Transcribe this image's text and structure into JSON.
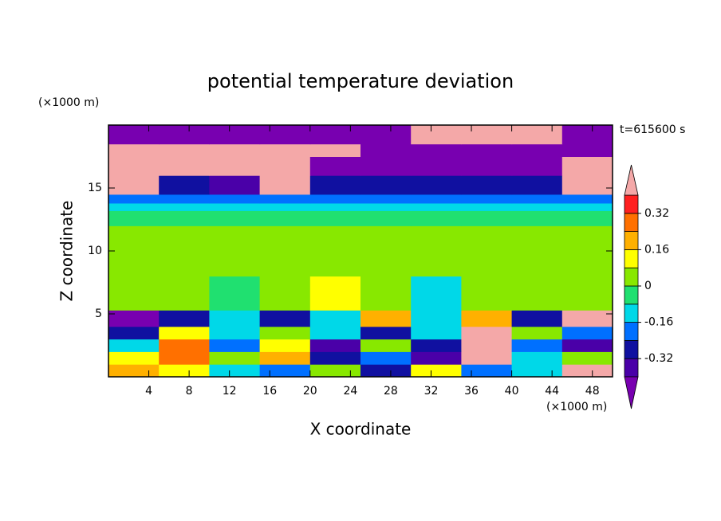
{
  "chart_data": {
    "type": "contour",
    "title": "potential temperature deviation",
    "y_unit": "(×1000 m)",
    "x_unit": "(×1000 m)",
    "time_label": "t=615600 s",
    "xlabel": "X coordinate",
    "ylabel": "Z coordinate",
    "xlim": [
      0,
      50
    ],
    "ylim": [
      0,
      20
    ],
    "xticks": [
      4,
      8,
      12,
      16,
      20,
      24,
      28,
      32,
      36,
      40,
      44,
      48
    ],
    "yticks": [
      5,
      10,
      15
    ],
    "x_edges": [
      0,
      5,
      10,
      15,
      20,
      25,
      30,
      35,
      40,
      45,
      50
    ],
    "z_edges": [
      0,
      1,
      2,
      3,
      4,
      5.3,
      8,
      12,
      13.2,
      13.8,
      14.5,
      16,
      17.5,
      18.5,
      20
    ],
    "values": [
      [
        0.2,
        0.1,
        -0.1,
        -0.2,
        0.0,
        -0.3,
        0.1,
        -0.2,
        -0.1,
        0.45
      ],
      [
        0.1,
        0.3,
        0.0,
        0.2,
        -0.3,
        -0.2,
        -0.35,
        0.45,
        -0.1,
        0.0
      ],
      [
        -0.1,
        0.25,
        -0.2,
        0.1,
        -0.35,
        0.0,
        -0.3,
        0.45,
        -0.2,
        -0.35
      ],
      [
        -0.3,
        0.1,
        -0.15,
        0.0,
        -0.1,
        -0.25,
        -0.15,
        0.45,
        0.0,
        -0.2
      ],
      [
        -0.45,
        -0.3,
        -0.1,
        -0.3,
        -0.1,
        0.2,
        -0.1,
        0.2,
        -0.3,
        0.45
      ],
      [
        0.05,
        0.05,
        -0.05,
        0.05,
        0.1,
        0.05,
        -0.12,
        0.05,
        0.05,
        0.05
      ],
      [
        0.05,
        0.05,
        0.05,
        0.05,
        0.05,
        0.05,
        0.05,
        0.05,
        0.05,
        0.05
      ],
      [
        -0.05,
        -0.05,
        -0.05,
        -0.05,
        -0.05,
        -0.05,
        -0.05,
        -0.05,
        -0.05,
        -0.05
      ],
      [
        -0.12,
        -0.12,
        -0.12,
        -0.12,
        -0.12,
        -0.12,
        -0.12,
        -0.12,
        -0.12,
        -0.12
      ],
      [
        -0.2,
        -0.2,
        -0.2,
        -0.2,
        -0.2,
        -0.2,
        -0.2,
        -0.2,
        -0.2,
        -0.2
      ],
      [
        0.45,
        -0.3,
        -0.35,
        0.45,
        -0.3,
        -0.3,
        -0.3,
        -0.3,
        -0.3,
        0.45
      ],
      [
        0.45,
        0.45,
        0.45,
        0.45,
        -0.45,
        -0.45,
        -0.45,
        -0.45,
        -0.45,
        0.45
      ],
      [
        0.45,
        0.45,
        0.45,
        0.45,
        0.45,
        -0.45,
        -0.45,
        -0.45,
        -0.45,
        -0.45
      ],
      [
        -0.45,
        -0.45,
        -0.45,
        -0.45,
        -0.45,
        -0.45,
        0.45,
        0.45,
        0.45,
        -0.45
      ]
    ],
    "levels": [
      -0.4,
      -0.32,
      -0.24,
      -0.16,
      -0.08,
      0,
      0.08,
      0.16,
      0.24,
      0.32,
      0.4
    ],
    "colors": [
      "#7800b0",
      "#4a00a8",
      "#1010a0",
      "#0070ff",
      "#00d8e8",
      "#20e070",
      "#88e800",
      "#ffff00",
      "#ffb000",
      "#ff7000",
      "#ff2020",
      "#f4a8a8"
    ],
    "cbticks": [
      0.32,
      0.16,
      0,
      -0.16,
      -0.32
    ]
  }
}
